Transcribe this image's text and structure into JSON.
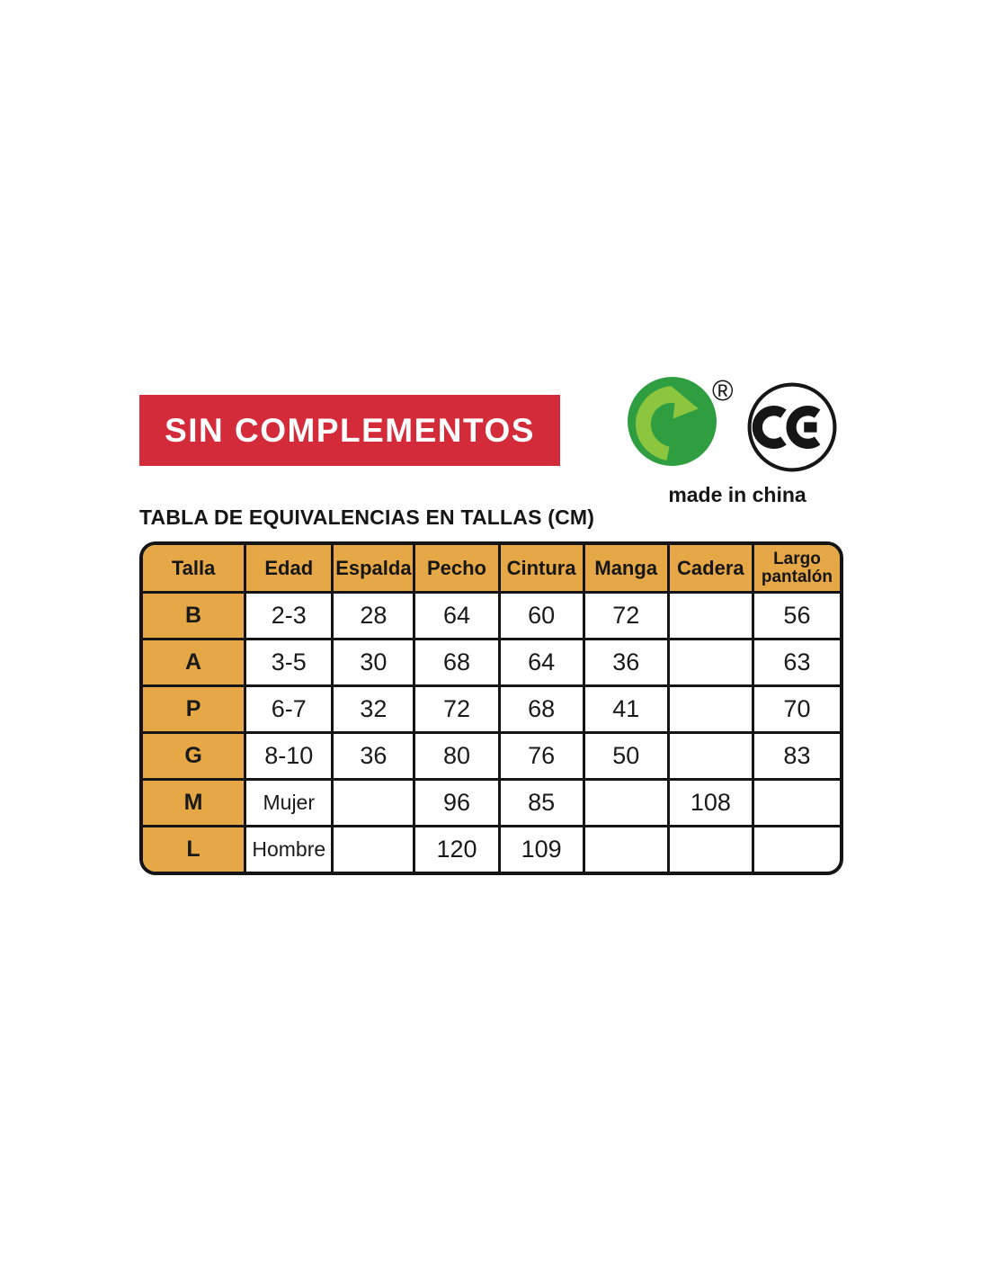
{
  "banner": {
    "text": "SIN COMPLEMENTOS",
    "bg_color": "#D32B3A",
    "text_color": "#FFFFFF"
  },
  "logos": {
    "green_dot": {
      "label": "green-dot-recycling-symbol",
      "dark_green": "#2E9E41",
      "light_green": "#8CC63F",
      "registered_symbol": "®"
    },
    "ce_mark": {
      "text": "CE"
    },
    "made_in": "made in china"
  },
  "size_table": {
    "title": "TABLA DE EQUIVALENCIAS EN TALLAS (CM)",
    "header_bg": "#E6A746",
    "border_color": "#151515",
    "columns": [
      "Talla",
      "Edad",
      "Espalda",
      "Pecho",
      "Cintura",
      "Manga",
      "Cadera",
      "Largo pantalón"
    ],
    "rows": [
      [
        "B",
        "2-3",
        "28",
        "64",
        "60",
        "72",
        "",
        "56"
      ],
      [
        "A",
        "3-5",
        "30",
        "68",
        "64",
        "36",
        "",
        "63"
      ],
      [
        "P",
        "6-7",
        "32",
        "72",
        "68",
        "41",
        "",
        "70"
      ],
      [
        "G",
        "8-10",
        "36",
        "80",
        "76",
        "50",
        "",
        "83"
      ],
      [
        "M",
        "Mujer",
        "",
        "96",
        "85",
        "",
        "108",
        ""
      ],
      [
        "L",
        "Hombre",
        "",
        "120",
        "109",
        "",
        "",
        ""
      ]
    ]
  }
}
